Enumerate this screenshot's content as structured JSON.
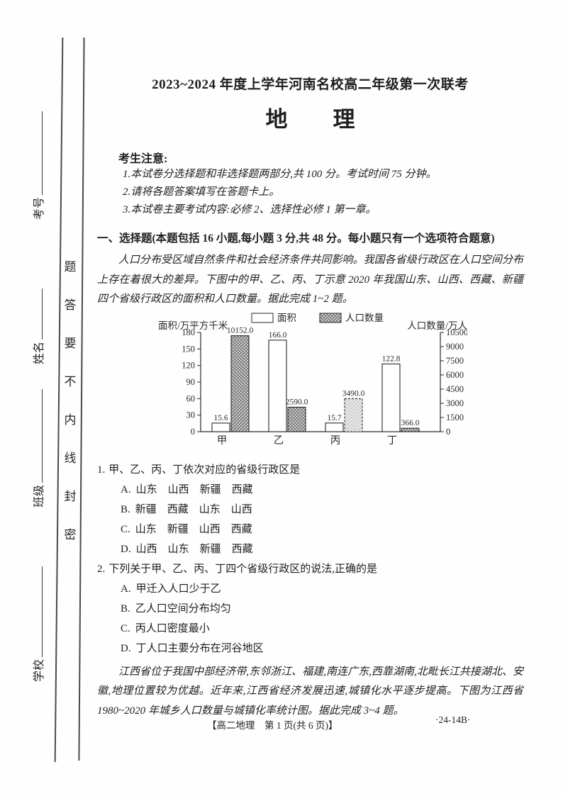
{
  "binding": {
    "seal_text": "密封线内不要答题",
    "fields": [
      {
        "label": "学校"
      },
      {
        "label": "班级"
      },
      {
        "label": "姓名"
      },
      {
        "label": "考号"
      }
    ]
  },
  "header": {
    "exam_title": "2023~2024 年度上学年河南名校高二年级第一次联考",
    "subject_chars": [
      "地",
      "理"
    ]
  },
  "notice": {
    "title": "考生注意:",
    "items": [
      "1.本试卷分选择题和非选择题两部分,共 100 分。考试时间 75 分钟。",
      "2.请将各题答案填写在答题卡上。",
      "3.本试卷主要考试内容:必修 2、选择性必修 1 第一章。"
    ]
  },
  "section1": {
    "heading": "一、选择题(本题包括 16 小题,每小题 3 分,共 48 分。每小题只有一个选项符合题意)",
    "intro": "人口分布受区域自然条件和社会经济条件共同影响。我国各省级行政区在人口空间分布上存在着很大的差异。下图中的甲、乙、丙、丁示意 2020 年我国山东、山西、西藏、新疆四个省级行政区的面积和人口数量。据此完成 1~2 题。"
  },
  "chart_data": {
    "type": "bar",
    "categories": [
      "甲",
      "乙",
      "丙",
      "丁"
    ],
    "series": [
      {
        "name": "面积",
        "axis": "left",
        "style": "white",
        "values": [
          15.6,
          166.0,
          15.7,
          122.8
        ],
        "labels": [
          "15.6",
          "166.0",
          "15.7",
          "122.8"
        ]
      },
      {
        "name": "人口数量",
        "axis": "right",
        "style": "hatch",
        "faded_index": 2,
        "values": [
          10152.0,
          2590.0,
          3490.0,
          366.0
        ],
        "labels": [
          "10152.0",
          "2590.0",
          "3490.0",
          "366.0"
        ]
      }
    ],
    "left_axis": {
      "label": "面积/万平方千米",
      "ticks": [
        0,
        30,
        60,
        90,
        120,
        150,
        180
      ],
      "max": 180
    },
    "right_axis": {
      "label": "人口数量/万人",
      "ticks": [
        0,
        1500,
        3000,
        4500,
        6000,
        7500,
        9000,
        10500
      ],
      "max": 10500
    },
    "legend": [
      "面积",
      "人口数量"
    ],
    "legend_position": "top",
    "grid": false,
    "value_labels": true
  },
  "questions": [
    {
      "number": "1.",
      "stem": "甲、乙、丙、丁依次对应的省级行政区是",
      "options": [
        {
          "key": "A.",
          "text": "山东　山西　新疆　西藏"
        },
        {
          "key": "B.",
          "text": "新疆　西藏　山东　山西"
        },
        {
          "key": "C.",
          "text": "山东　新疆　山西　西藏"
        },
        {
          "key": "D.",
          "text": "山西　山东　新疆　西藏"
        }
      ]
    },
    {
      "number": "2.",
      "stem": "下列关于甲、乙、丙、丁四个省级行政区的说法,正确的是",
      "options": [
        {
          "key": "A.",
          "text": "甲迁入人口少于乙"
        },
        {
          "key": "B.",
          "text": "乙人口空间分布均匀"
        },
        {
          "key": "C.",
          "text": "丙人口密度最小"
        },
        {
          "key": "D.",
          "text": "丁人口主要分布在河谷地区"
        }
      ]
    }
  ],
  "passage2": "江西省位于我国中部经济带,东邻浙江、福建,南连广东,西靠湖南,北毗长江共接湖北、安徽,地理位置较为优越。近年来,江西省经济发展迅速,城镇化水平逐步提高。下图为江西省 1980~2020 年城乡人口数量与城镇化率统计图。据此完成 3~4 题。",
  "footer": {
    "center": "【高二地理　第 1 页(共 6 页)】",
    "right": "·24-14B·"
  }
}
